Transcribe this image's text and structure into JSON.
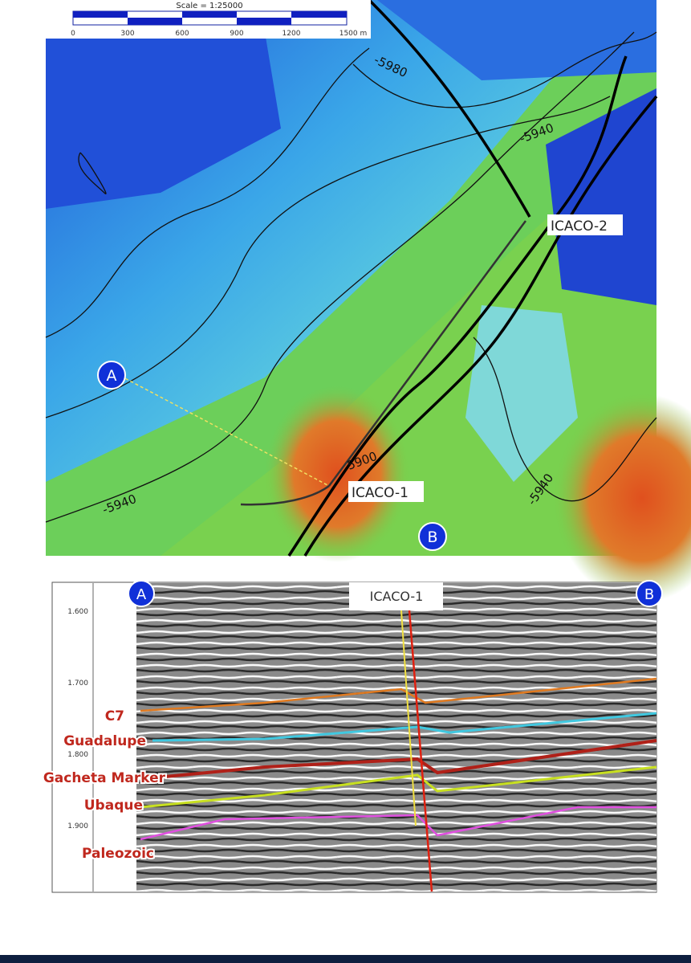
{
  "map": {
    "scale_title": "Scale = 1:25000",
    "scale_labels": [
      "0",
      "300",
      "600",
      "900",
      "1200",
      "1500 m"
    ],
    "contour_labels": [
      "-5980",
      "-5940",
      "-5940",
      "-5940",
      "5900"
    ],
    "wells": [
      "ICACO-2",
      "ICACO-1"
    ],
    "points": [
      "A",
      "B"
    ]
  },
  "section": {
    "points": [
      "A",
      "B"
    ],
    "well": "ICACO-1",
    "depth_ticks": [
      "1.600",
      "1.700",
      "1.800",
      "1.900"
    ],
    "horizons": [
      "C7",
      "Guadalupe",
      "Gacheta Marker",
      "Ubaque",
      "Paleozoic"
    ]
  }
}
